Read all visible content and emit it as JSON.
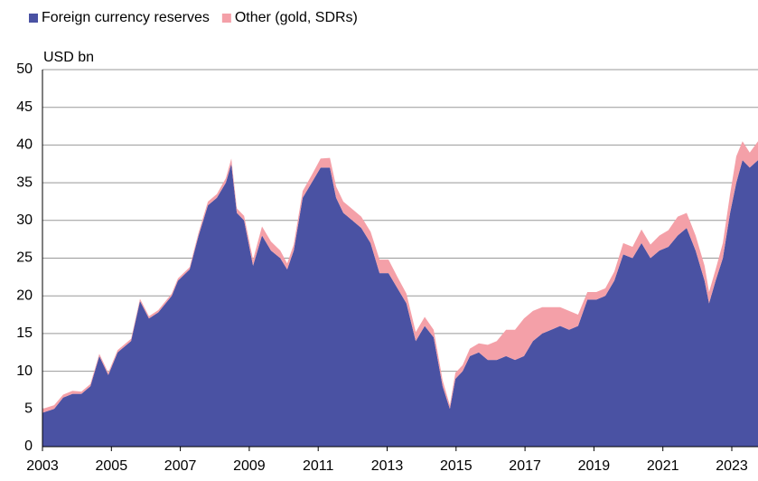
{
  "chart_data": {
    "type": "stacked_area",
    "y_label": "USD bn",
    "legend": "top-left",
    "grid": true,
    "xlim": [
      2003,
      2023.76
    ],
    "xticks": [
      2003,
      2005,
      2007,
      2009,
      2011,
      2013,
      2015,
      2017,
      2019,
      2021,
      2023
    ],
    "ylim": [
      0,
      50
    ],
    "yticks": [
      0,
      5,
      10,
      15,
      20,
      25,
      30,
      35,
      40,
      45,
      50
    ],
    "x": [
      2003.0,
      2003.34,
      2003.6,
      2003.87,
      2004.13,
      2004.39,
      2004.65,
      2004.91,
      2005.18,
      2005.57,
      2005.83,
      2006.09,
      2006.36,
      2006.75,
      2006.93,
      2007.27,
      2007.53,
      2007.8,
      2008.06,
      2008.32,
      2008.48,
      2008.64,
      2008.85,
      2009.11,
      2009.37,
      2009.63,
      2009.9,
      2010.1,
      2010.29,
      2010.55,
      2010.81,
      2011.07,
      2011.34,
      2011.52,
      2011.73,
      2011.99,
      2012.25,
      2012.52,
      2012.78,
      2013.04,
      2013.3,
      2013.56,
      2013.83,
      2013.96,
      2014.09,
      2014.35,
      2014.61,
      2014.82,
      2014.98,
      2015.19,
      2015.4,
      2015.66,
      2015.92,
      2016.18,
      2016.45,
      2016.71,
      2016.97,
      2017.23,
      2017.5,
      2017.76,
      2018.02,
      2018.28,
      2018.54,
      2018.81,
      2019.07,
      2019.33,
      2019.59,
      2019.85,
      2020.12,
      2020.38,
      2020.64,
      2020.9,
      2021.16,
      2021.43,
      2021.69,
      2021.95,
      2022.21,
      2022.34,
      2022.53,
      2022.74,
      2022.95,
      2023.13,
      2023.31,
      2023.52,
      2023.76
    ],
    "series": [
      {
        "name": "Foreign currency reserves",
        "color": "#4a52a3",
        "values": [
          4.5,
          5,
          6.5,
          7,
          7,
          8,
          12,
          9.5,
          12.5,
          14,
          19.3,
          17,
          17.8,
          20,
          22,
          23.5,
          28,
          32,
          33,
          35,
          37.5,
          31,
          30,
          24,
          28,
          26,
          25,
          23.5,
          26,
          33,
          35,
          37,
          37,
          33,
          31,
          30,
          29,
          27,
          23,
          23,
          21,
          19,
          14,
          15,
          16,
          14.5,
          8,
          5,
          9,
          10,
          12,
          12.5,
          11.5,
          11.5,
          12,
          11.5,
          12,
          14,
          15,
          15.5,
          16,
          15.5,
          16,
          19.5,
          19.5,
          20,
          22,
          25.5,
          25,
          27,
          25,
          26,
          26.5,
          28,
          29,
          26,
          22,
          19,
          22,
          25,
          31,
          35,
          38,
          37,
          38
        ]
      },
      {
        "name": "Other (gold, SDRs)",
        "color": "#f4a0a8",
        "values": [
          0.5,
          0.5,
          0.4,
          0.4,
          0.3,
          0.3,
          0.3,
          0.3,
          0.3,
          0.3,
          0.3,
          0.3,
          0.3,
          0.3,
          0.3,
          0.3,
          0.4,
          0.5,
          0.5,
          0.6,
          0.7,
          0.6,
          0.6,
          0.8,
          1.2,
          1.2,
          1,
          0.8,
          0.8,
          0.9,
          1,
          1.2,
          1.3,
          1.5,
          1.5,
          1.5,
          1.5,
          1.5,
          1.8,
          1.8,
          1.5,
          1.3,
          1.2,
          1.2,
          1.2,
          1,
          0.8,
          0.5,
          0.8,
          0.8,
          1,
          1.2,
          2,
          2.5,
          3.5,
          4,
          5,
          4,
          3.5,
          3,
          2.5,
          2.5,
          1.5,
          1,
          1,
          1,
          1.2,
          1.5,
          1.5,
          1.8,
          1.8,
          2,
          2.2,
          2.5,
          2,
          2,
          2,
          1.5,
          1.5,
          2,
          2.5,
          3.5,
          2.5,
          2,
          2.5
        ]
      }
    ]
  }
}
